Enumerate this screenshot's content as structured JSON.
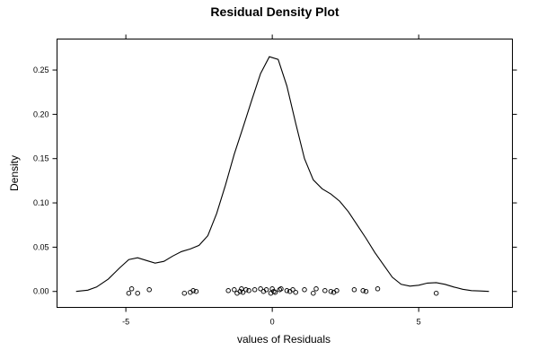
{
  "chart_data": {
    "type": "line",
    "title": "Residual Density Plot",
    "xlabel": "values of Residuals",
    "ylabel": "Density",
    "xlim": [
      -7.35,
      8.2
    ],
    "ylim": [
      -0.018,
      0.285
    ],
    "x_ticks": [
      -5,
      0,
      5
    ],
    "x_tick_labels": [
      "-5",
      "0",
      "5"
    ],
    "y_ticks": [
      0,
      0.05,
      0.1,
      0.15,
      0.2,
      0.25
    ],
    "y_tick_labels": [
      "0.00",
      "0.05",
      "0.10",
      "0.15",
      "0.20",
      "0.25"
    ],
    "grid": false,
    "series": [
      {
        "kind": "density-curve",
        "x": [
          -6.7,
          -6.3,
          -6.0,
          -5.6,
          -5.2,
          -4.9,
          -4.6,
          -4.3,
          -4.0,
          -3.7,
          -3.4,
          -3.1,
          -2.8,
          -2.5,
          -2.2,
          -1.9,
          -1.6,
          -1.3,
          -1.0,
          -0.7,
          -0.4,
          -0.1,
          0.2,
          0.5,
          0.8,
          1.1,
          1.4,
          1.7,
          2.0,
          2.3,
          2.6,
          2.9,
          3.2,
          3.5,
          3.8,
          4.1,
          4.4,
          4.7,
          5.0,
          5.3,
          5.6,
          5.9,
          6.2,
          6.5,
          6.8,
          7.1,
          7.4
        ],
        "y": [
          0.0,
          0.0015,
          0.005,
          0.014,
          0.027,
          0.036,
          0.038,
          0.035,
          0.032,
          0.034,
          0.04,
          0.045,
          0.048,
          0.052,
          0.063,
          0.088,
          0.12,
          0.155,
          0.185,
          0.216,
          0.246,
          0.265,
          0.262,
          0.232,
          0.19,
          0.15,
          0.126,
          0.116,
          0.11,
          0.102,
          0.09,
          0.075,
          0.06,
          0.044,
          0.03,
          0.016,
          0.008,
          0.006,
          0.007,
          0.0095,
          0.01,
          0.008,
          0.005,
          0.0025,
          0.001,
          0.0005,
          0.0
        ]
      },
      {
        "kind": "rug-points",
        "x": [
          -4.9,
          -4.8,
          -4.6,
          -4.2,
          -3.0,
          -2.8,
          -2.7,
          -2.6,
          -1.5,
          -1.3,
          -1.2,
          -1.1,
          -1.05,
          -1.0,
          -0.9,
          -0.8,
          -0.6,
          -0.4,
          -0.3,
          -0.2,
          -0.05,
          0.0,
          0.05,
          0.1,
          0.25,
          0.3,
          0.5,
          0.6,
          0.7,
          0.8,
          1.1,
          1.4,
          1.5,
          1.8,
          2.0,
          2.1,
          2.2,
          2.8,
          3.1,
          3.2,
          3.6,
          5.6
        ],
        "y": [
          -0.002,
          0.003,
          -0.002,
          0.002,
          -0.002,
          -0.001,
          0.001,
          0.0,
          0.001,
          0.002,
          -0.002,
          0.0,
          0.003,
          -0.001,
          0.002,
          0.001,
          0.002,
          0.003,
          0.0,
          0.002,
          -0.002,
          0.003,
          0.0,
          -0.001,
          0.002,
          0.003,
          0.001,
          0.0,
          0.002,
          -0.001,
          0.002,
          -0.002,
          0.003,
          0.001,
          0.0,
          -0.001,
          0.001,
          0.002,
          0.001,
          0.0,
          0.003,
          -0.002
        ]
      }
    ]
  }
}
